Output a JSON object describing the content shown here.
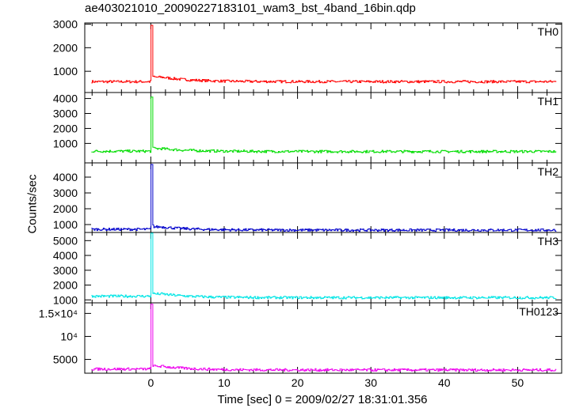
{
  "header": {
    "title": "ae403021010_20090227183101_wam3_bst_4band_16bin.qdp"
  },
  "chart_data": {
    "type": "line",
    "title": "ae403021010_20090227183101_wam3_bst_4band_16bin.qdp",
    "xlabel": "Time [sec] 0 = 2009/02/27 18:31:01.356",
    "ylabel": "Counts/sec",
    "xlim": [
      -9,
      56
    ],
    "x_ticks": [
      0,
      10,
      20,
      30,
      40,
      50
    ],
    "x_tick_labels": [
      "0",
      "10",
      "20",
      "30",
      "40",
      "50"
    ],
    "grid": false,
    "time_bin_sec": 0.125,
    "panels": [
      {
        "name": "TH0",
        "color": "#ff0000",
        "ylim": [
          100,
          3050
        ],
        "y_ticks": [
          1000,
          2000,
          3000
        ],
        "y_tick_labels": [
          "1000",
          "2000",
          "3000"
        ],
        "baseline": 500,
        "pre_burst_level": 560,
        "post_burst_level": 560,
        "burst": {
          "start": 0.0,
          "peak_time": 0.1,
          "peak": 2950,
          "decay_level": 750
        }
      },
      {
        "name": "TH1",
        "color": "#00dd00",
        "ylim": [
          -300,
          4400
        ],
        "y_ticks": [
          1000,
          2000,
          3000,
          4000
        ],
        "y_tick_labels": [
          "1000",
          "2000",
          "3000",
          "4000"
        ],
        "baseline": 450,
        "pre_burst_level": 480,
        "post_burst_level": 460,
        "burst": {
          "start": 0.0,
          "peak_time": 0.1,
          "peak": 4100,
          "decay_level": 650
        }
      },
      {
        "name": "TH2",
        "color": "#0000cc",
        "ylim": [
          500,
          4900
        ],
        "y_ticks": [
          1000,
          2000,
          3000,
          4000
        ],
        "y_tick_labels": [
          "1000",
          "2000",
          "3000",
          "4000"
        ],
        "baseline": 680,
        "pre_burst_level": 700,
        "post_burst_level": 650,
        "burst": {
          "start": 0.0,
          "peak_time": 0.1,
          "peak": 4800,
          "decay_level": 850
        }
      },
      {
        "name": "TH3",
        "color": "#00e5e5",
        "ylim": [
          800,
          5550
        ],
        "y_ticks": [
          1000,
          2000,
          3000,
          4000,
          5000
        ],
        "y_tick_labels": [
          "1000",
          "2000",
          "3000",
          "4000",
          "5000"
        ],
        "baseline": 1200,
        "pre_burst_level": 1250,
        "post_burst_level": 1150,
        "burst": {
          "start": 0.0,
          "peak_time": 0.1,
          "peak": 5500,
          "decay_level": 1400
        }
      },
      {
        "name": "TH0123",
        "color": "#ee00ee",
        "ylim": [
          2000,
          17300
        ],
        "y_ticks": [
          5000,
          10000,
          15000
        ],
        "y_tick_labels": [
          "5000",
          "10⁴",
          "1.5×10⁴"
        ],
        "baseline": 2800,
        "pre_burst_level": 2900,
        "post_burst_level": 2700,
        "burst": {
          "start": 0.0,
          "peak_time": 0.1,
          "peak": 17000,
          "decay_level": 3500
        }
      }
    ]
  }
}
